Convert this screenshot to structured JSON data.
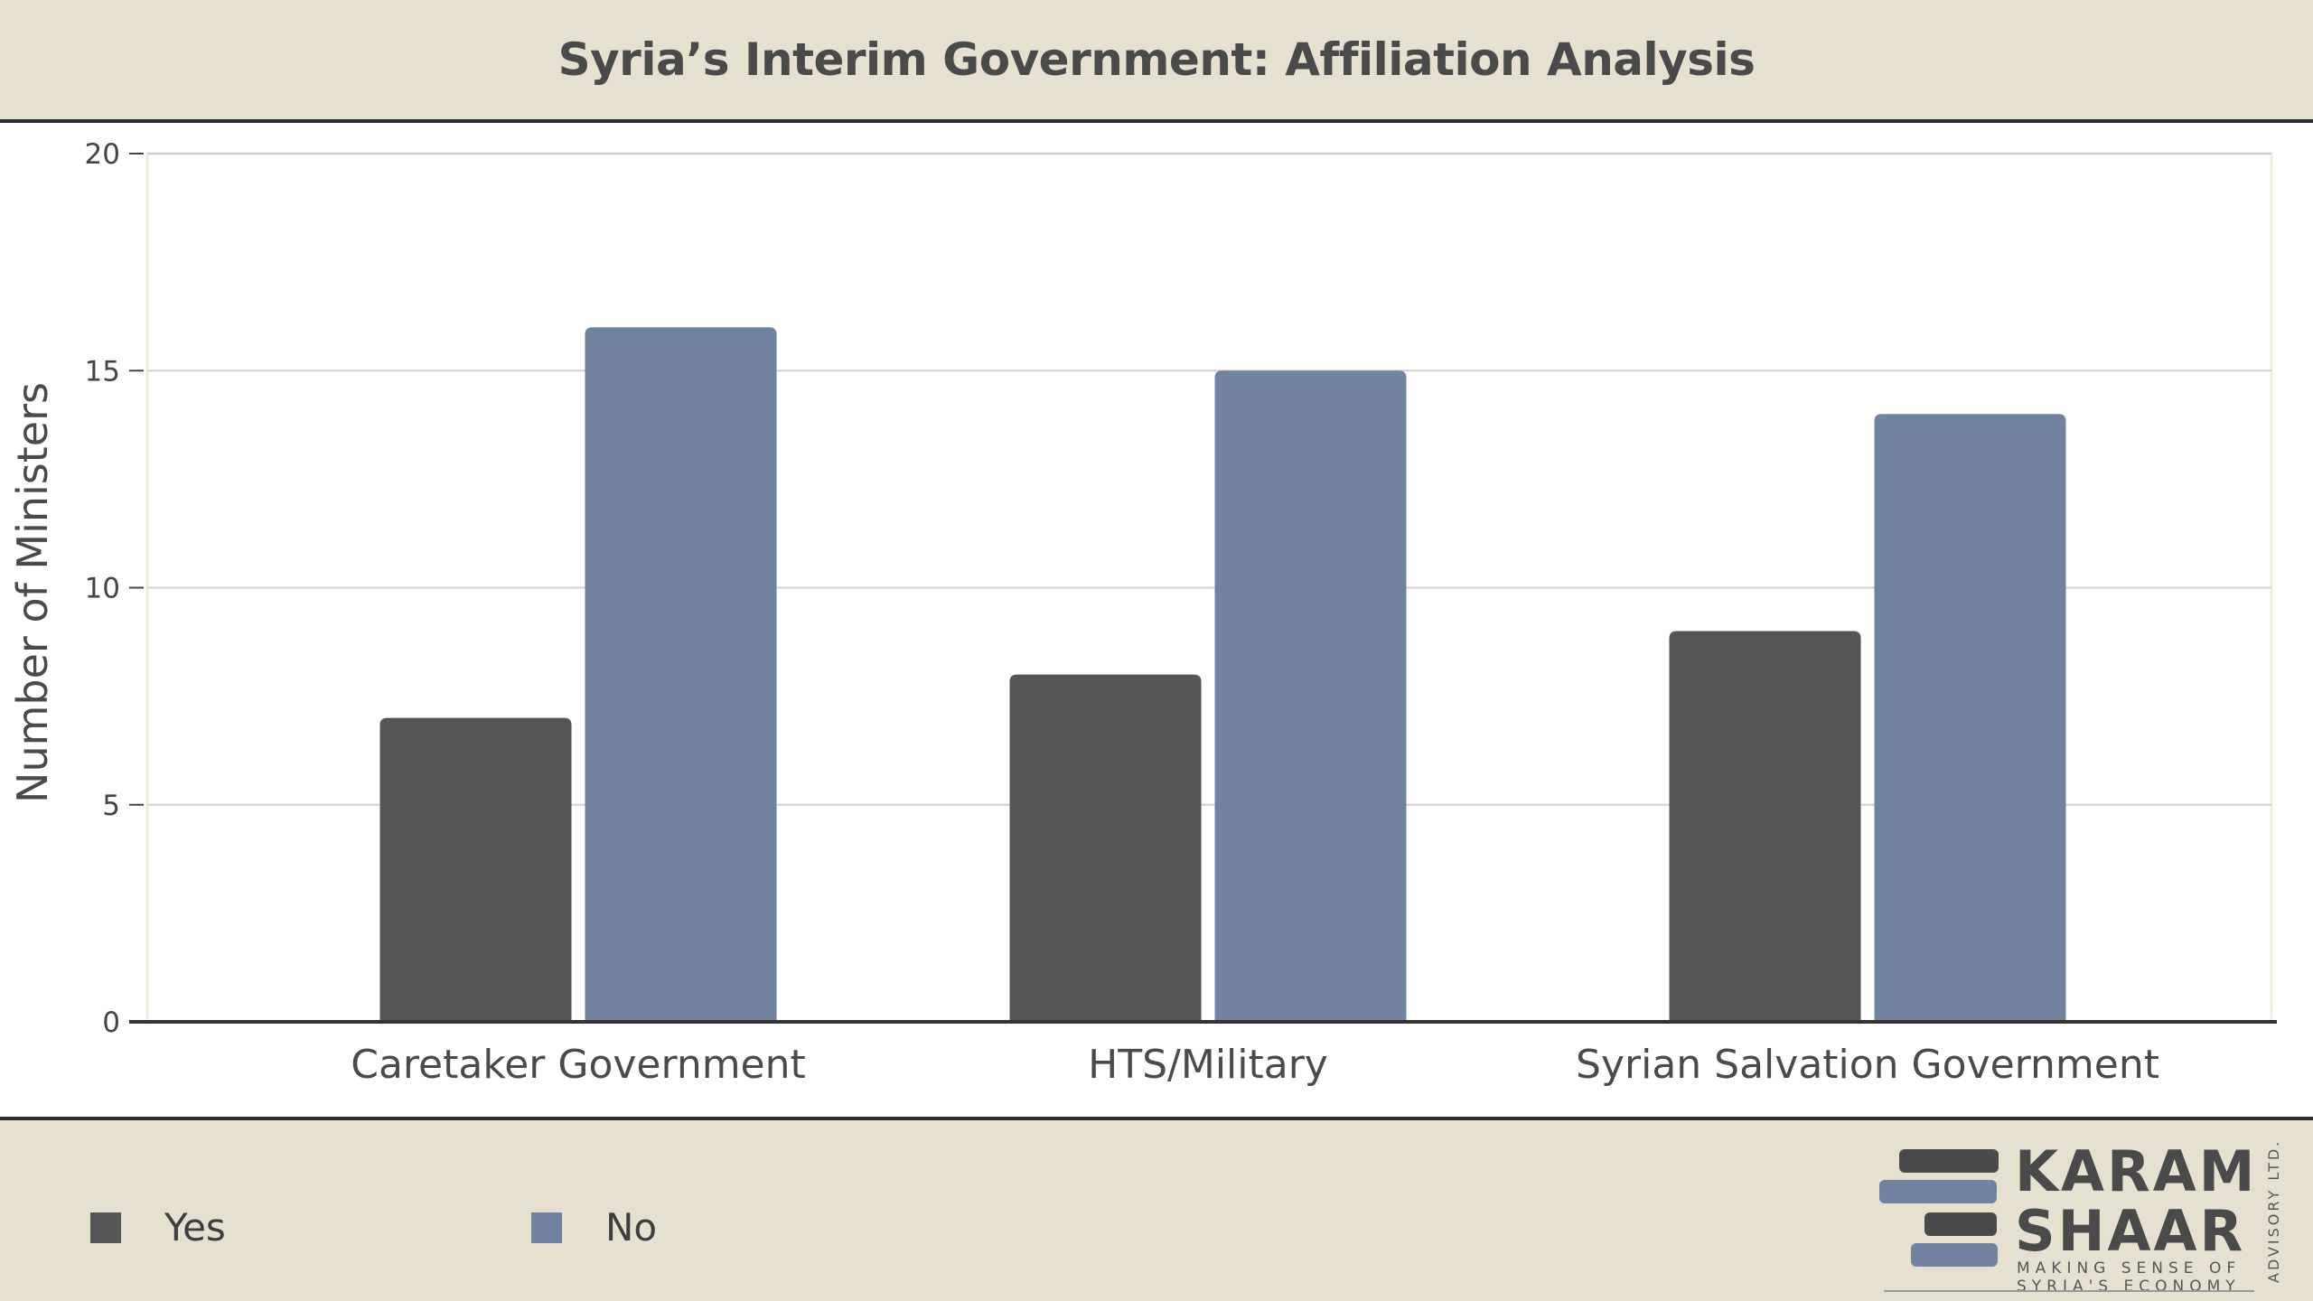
{
  "header": {
    "title": "Syria’s Interim Government: Affiliation Analysis"
  },
  "chart_data": {
    "type": "bar",
    "title": "Syria’s Interim Government: Affiliation Analysis",
    "categories": [
      "Caretaker Government",
      "HTS/Military",
      "Syrian Salvation Government"
    ],
    "series": [
      {
        "name": "Yes",
        "values": [
          7,
          8,
          9
        ],
        "color": "#555555"
      },
      {
        "name": "No",
        "values": [
          16,
          15,
          14
        ],
        "color": "#71839e"
      }
    ],
    "xlabel": "",
    "ylabel": "Number of Ministers",
    "ylim": [
      0,
      20
    ],
    "yticks": [
      0,
      5,
      10,
      15,
      20
    ],
    "grid": true,
    "legend_position": "bottom-left"
  },
  "legend": {
    "items": [
      {
        "label": "Yes",
        "color": "#555555"
      },
      {
        "label": "No",
        "color": "#71839e"
      }
    ]
  },
  "logo": {
    "line1": "KARAM",
    "line2": "SHAAR",
    "tagline1": "MAKING SENSE OF",
    "tagline2": "SYRIA'S ECONOMY",
    "side": "ADVISORY LTD."
  }
}
